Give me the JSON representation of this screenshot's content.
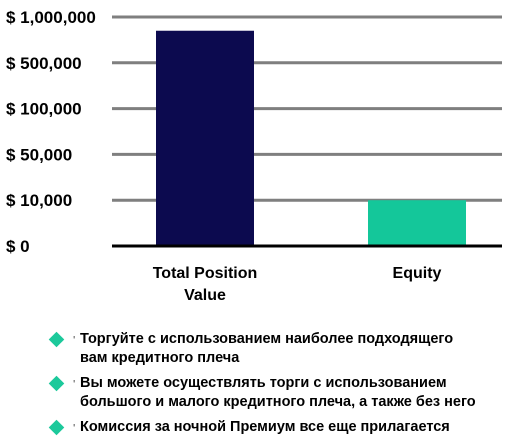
{
  "chart_data": {
    "type": "bar",
    "yscale": "categorical-ticks",
    "ticks": [
      "$ 1,000,000",
      "$ 500,000",
      "$ 100,000",
      "$ 50,000",
      "$ 10,000",
      "$ 0"
    ],
    "tick_values": [
      1000000,
      500000,
      100000,
      50000,
      10000,
      0
    ],
    "categories": [
      "Total Position Value",
      "Equity"
    ],
    "category_lines": [
      [
        "Total Position",
        "Value"
      ],
      [
        "Equity"
      ]
    ],
    "values": [
      850000,
      10000
    ],
    "colors": [
      "#0c0a4f",
      "#14c79a"
    ],
    "grid": true,
    "gridColor": "#7f7f7f"
  },
  "bullets": [
    {
      "lines": [
        "Торгуйте с использованием наиболее подходящего",
        "вам кредитного плеча"
      ]
    },
    {
      "lines": [
        "Вы можете осуществлять торги с использованием",
        "большого и малого кредитного плеча, а также без него"
      ]
    },
    {
      "lines": [
        "Комиссия за ночной Премиум все еще прилагается"
      ]
    }
  ],
  "bullet_color": "#1cc99b"
}
